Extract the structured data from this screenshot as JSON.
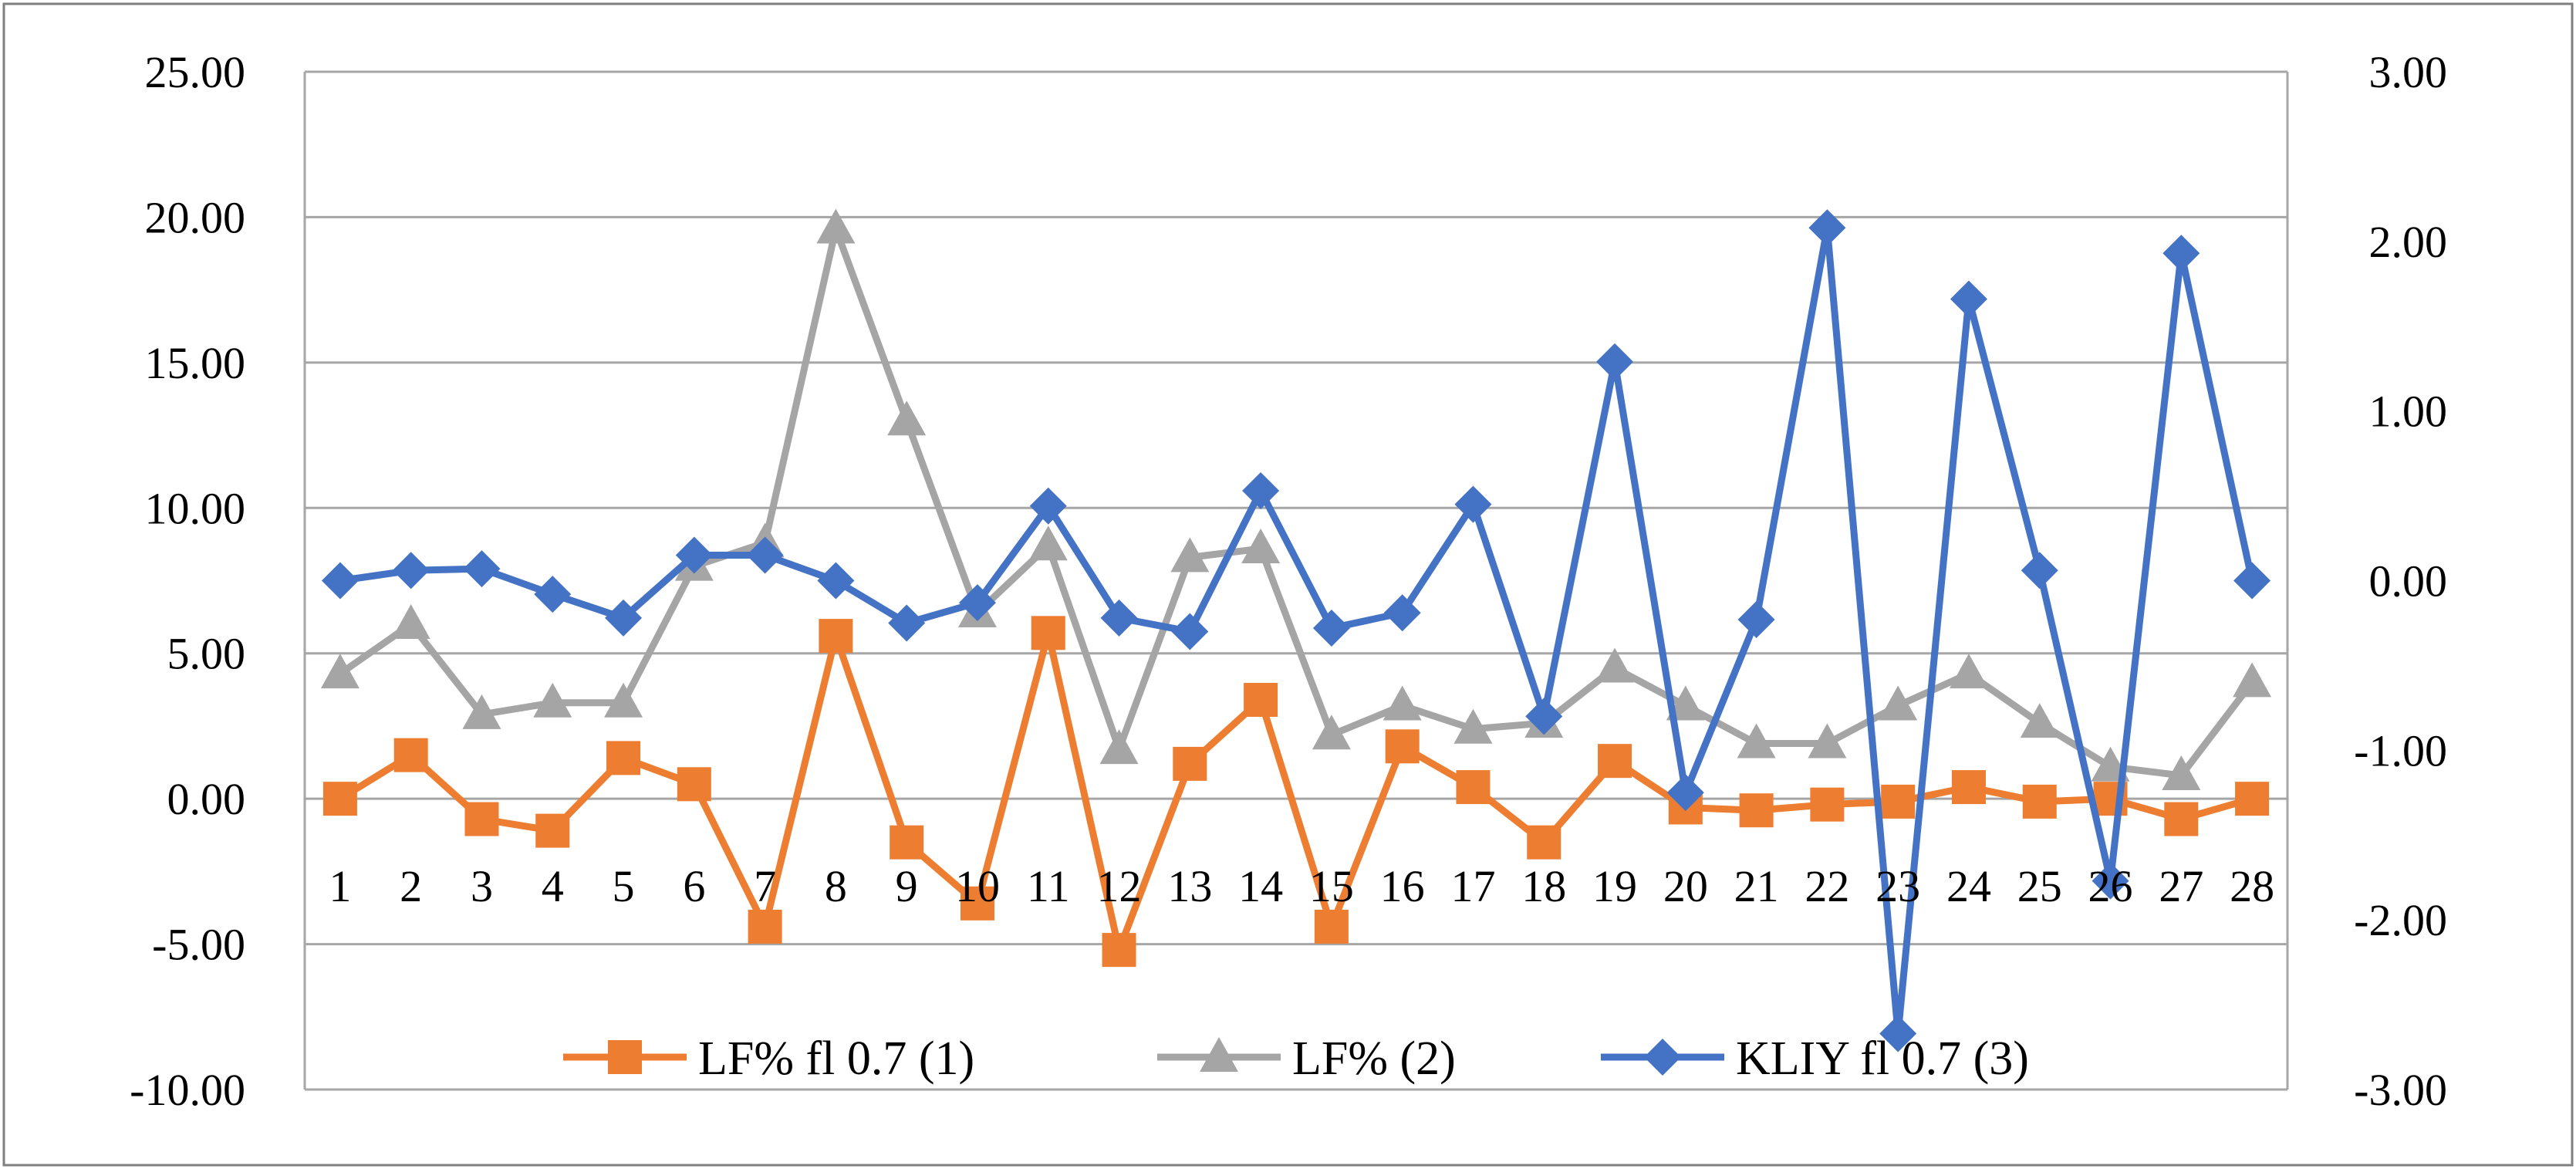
{
  "chart_data": {
    "type": "line",
    "title": "",
    "xlabel": "",
    "ylabel": "",
    "categories": [
      "1",
      "2",
      "3",
      "4",
      "5",
      "6",
      "7",
      "8",
      "9",
      "10",
      "11",
      "12",
      "13",
      "14",
      "15",
      "16",
      "17",
      "18",
      "19",
      "20",
      "21",
      "22",
      "23",
      "24",
      "25",
      "26",
      "27",
      "28"
    ],
    "y_left": {
      "range": [
        -10,
        25
      ],
      "ticks": [
        25,
        20,
        15,
        10,
        5,
        0,
        -5,
        -10
      ],
      "tick_labels": [
        "25.00",
        "20.00",
        "15.00",
        "10.00",
        "5.00",
        "0.00",
        "-5.00",
        "-10.00"
      ]
    },
    "y_right": {
      "range": [
        -3,
        3
      ],
      "ticks": [
        3,
        2,
        1,
        0,
        -1,
        -2,
        -3
      ],
      "tick_labels": [
        "3.00",
        "2.00",
        "1.00",
        "0.00",
        "-1.00",
        "-2.00",
        "-3.00"
      ]
    },
    "grid": true,
    "legend_position": "bottom",
    "series": [
      {
        "name": "LF% fl 0.7 (1)",
        "axis": "left",
        "color": "#ED7D31",
        "marker": "square",
        "values": [
          0.0,
          1.5,
          -0.7,
          -1.1,
          1.4,
          0.5,
          -4.4,
          5.6,
          -1.5,
          -3.6,
          5.7,
          -5.2,
          1.2,
          3.4,
          -4.4,
          1.8,
          0.4,
          -1.5,
          1.3,
          -0.3,
          -0.4,
          -0.2,
          -0.1,
          0.4,
          -0.1,
          0.0,
          -0.7,
          0.0
        ]
      },
      {
        "name": "LF% (2)",
        "axis": "left",
        "color": "#A5A5A5",
        "marker": "triangle",
        "values": [
          4.3,
          6.0,
          2.9,
          3.3,
          3.3,
          8.0,
          8.8,
          19.6,
          13.0,
          6.4,
          8.7,
          1.7,
          8.3,
          8.6,
          2.2,
          3.2,
          2.4,
          2.6,
          4.5,
          3.2,
          1.9,
          1.9,
          3.2,
          4.3,
          2.6,
          1.1,
          0.8,
          4.0
        ]
      },
      {
        "name": "KLIY fl 0.7 (3)",
        "axis": "right",
        "color": "#4472C4",
        "marker": "diamond",
        "values": [
          0.0,
          0.06,
          0.07,
          -0.08,
          -0.22,
          0.15,
          0.15,
          0.0,
          -0.25,
          -0.13,
          0.44,
          -0.22,
          -0.3,
          0.53,
          -0.28,
          -0.19,
          0.45,
          -0.8,
          1.29,
          -1.25,
          -0.23,
          2.08,
          -2.67,
          1.66,
          0.06,
          -1.77,
          1.93,
          0.0
        ]
      }
    ]
  }
}
